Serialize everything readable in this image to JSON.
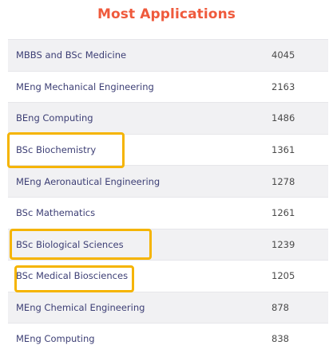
{
  "title": "Most Applications",
  "highlight_color": "#f5b400",
  "title_color": "#ef5a3c",
  "rows": [
    {
      "course": "MBBS and BSc Medicine",
      "applications": "4045",
      "highlighted": false
    },
    {
      "course": "MEng Mechanical Engineering",
      "applications": "2163",
      "highlighted": false
    },
    {
      "course": "BEng Computing",
      "applications": "1486",
      "highlighted": false
    },
    {
      "course": "BSc Biochemistry",
      "applications": "1361",
      "highlighted": true
    },
    {
      "course": "MEng Aeronautical Engineering",
      "applications": "1278",
      "highlighted": false
    },
    {
      "course": "BSc Mathematics",
      "applications": "1261",
      "highlighted": false
    },
    {
      "course": "BSc Biological Sciences",
      "applications": "1239",
      "highlighted": true
    },
    {
      "course": "BSc Medical Biosciences",
      "applications": "1205",
      "highlighted": true
    },
    {
      "course": "MEng Chemical Engineering",
      "applications": "878",
      "highlighted": false
    },
    {
      "course": "MEng Computing",
      "applications": "838",
      "highlighted": false
    }
  ]
}
